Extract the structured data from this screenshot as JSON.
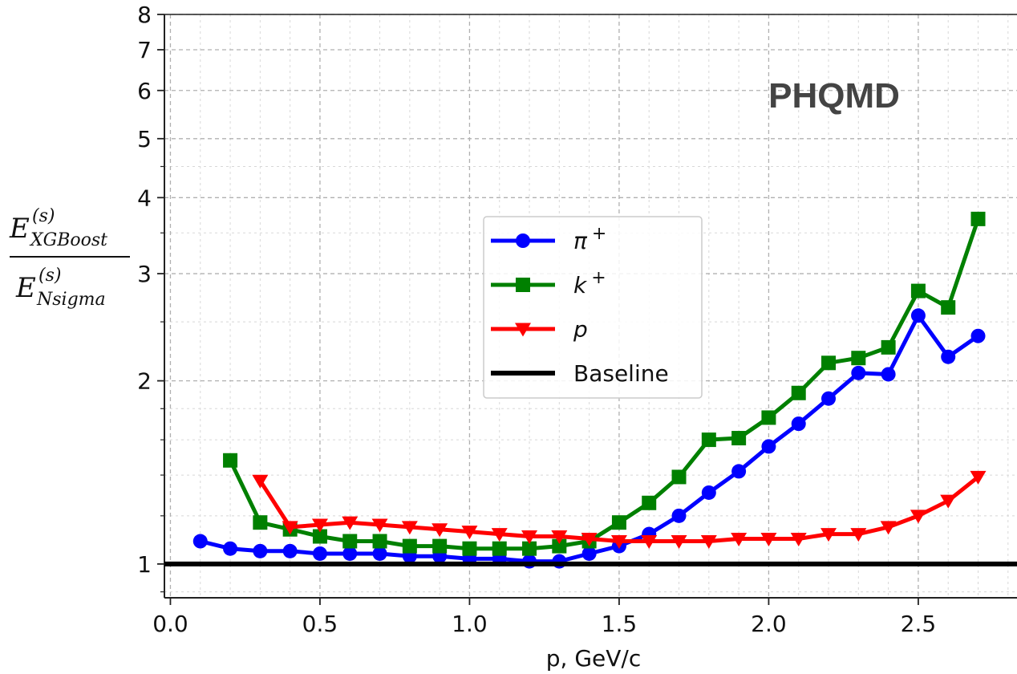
{
  "chart_data": {
    "type": "line",
    "xlabel": "p, GeV/c",
    "ylabel": {
      "numerator": "E",
      "numerator_sup": "(s)",
      "numerator_sub": "XGBoost",
      "denominator": "E",
      "denominator_sup": "(s)",
      "denominator_sub": "Nsigma"
    },
    "annotation": "PHQMD",
    "y_scale": "log",
    "xlim": [
      -0.02,
      2.83
    ],
    "ylim": [
      0.88,
      8
    ],
    "grid": true,
    "legend_position": "center",
    "x_ticks": [
      "0.0",
      "0.5",
      "1.0",
      "1.5",
      "2.0",
      "2.5"
    ],
    "y_ticks": [
      "1",
      "2",
      "3",
      "4",
      "5",
      "6",
      "7",
      "8"
    ],
    "series": [
      {
        "name": "π⁺",
        "legend_base": "π",
        "legend_sup": "+",
        "color": "#0000ff",
        "marker": "circle",
        "x": [
          0.1,
          0.2,
          0.3,
          0.4,
          0.5,
          0.6,
          0.7,
          0.8,
          0.9,
          1.0,
          1.1,
          1.2,
          1.3,
          1.4,
          1.5,
          1.6,
          1.7,
          1.8,
          1.9,
          2.0,
          2.1,
          2.2,
          2.3,
          2.4,
          2.5,
          2.6,
          2.7
        ],
        "values": [
          1.09,
          1.06,
          1.05,
          1.05,
          1.04,
          1.04,
          1.04,
          1.03,
          1.03,
          1.02,
          1.02,
          1.01,
          1.01,
          1.04,
          1.07,
          1.12,
          1.2,
          1.31,
          1.42,
          1.56,
          1.7,
          1.87,
          2.06,
          2.05,
          2.56,
          2.19,
          2.37
        ]
      },
      {
        "name": "k⁺",
        "legend_base": "k",
        "legend_sup": "+",
        "color": "#008000",
        "marker": "square",
        "x": [
          0.2,
          0.3,
          0.4,
          0.5,
          0.6,
          0.7,
          0.8,
          0.9,
          1.0,
          1.1,
          1.2,
          1.3,
          1.4,
          1.5,
          1.6,
          1.7,
          1.8,
          1.9,
          2.0,
          2.1,
          2.2,
          2.3,
          2.4,
          2.5,
          2.6,
          2.7
        ],
        "values": [
          1.48,
          1.17,
          1.14,
          1.11,
          1.09,
          1.09,
          1.07,
          1.07,
          1.06,
          1.06,
          1.06,
          1.07,
          1.09,
          1.17,
          1.26,
          1.39,
          1.6,
          1.61,
          1.74,
          1.91,
          2.14,
          2.18,
          2.27,
          2.81,
          2.64,
          3.69
        ]
      },
      {
        "name": "p",
        "legend_base": "p",
        "legend_sup": "",
        "color": "#ff0000",
        "marker": "triangle-down",
        "x": [
          0.3,
          0.4,
          0.5,
          0.6,
          0.7,
          0.8,
          0.9,
          1.0,
          1.1,
          1.2,
          1.3,
          1.4,
          1.5,
          1.6,
          1.7,
          1.8,
          1.9,
          2.0,
          2.1,
          2.2,
          2.3,
          2.4,
          2.5,
          2.6,
          2.7
        ],
        "values": [
          1.37,
          1.15,
          1.16,
          1.17,
          1.16,
          1.15,
          1.14,
          1.13,
          1.12,
          1.11,
          1.11,
          1.1,
          1.09,
          1.09,
          1.09,
          1.09,
          1.1,
          1.1,
          1.1,
          1.12,
          1.12,
          1.15,
          1.2,
          1.27,
          1.39
        ]
      },
      {
        "name": "Baseline",
        "legend_base": "Baseline",
        "legend_sup": "",
        "color": "#000000",
        "marker": "none",
        "x": [
          -0.02,
          2.83
        ],
        "values": [
          1,
          1
        ]
      }
    ]
  }
}
